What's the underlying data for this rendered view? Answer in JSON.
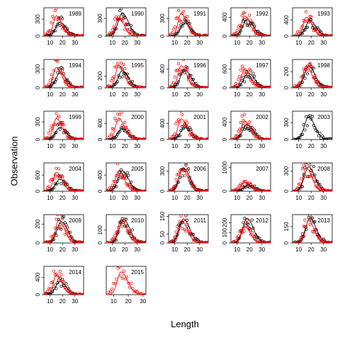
{
  "chart_data": {
    "type": "scatter",
    "title": "",
    "xlabel": "Length",
    "ylabel": "Observation",
    "series": [
      {
        "color": "#000000",
        "kind": "points + fitted line"
      },
      {
        "color": "#ff0000",
        "kind": "points + fitted line"
      }
    ],
    "panels": [
      {
        "year": "1989",
        "xlim": [
          5,
          37
        ],
        "ylim": [
          0,
          500
        ],
        "yticks": [
          "0",
          "300"
        ],
        "xticks": [
          "10",
          "20",
          "30"
        ],
        "black_peak": 270,
        "red_peak": 420,
        "black_mode": 18,
        "red_mode": 15,
        "red_points": true
      },
      {
        "year": "1990",
        "xlim": [
          5,
          37
        ],
        "ylim": [
          0,
          480
        ],
        "yticks": [
          "0",
          "300"
        ],
        "xticks": [
          "10",
          "20",
          "30"
        ],
        "black_peak": 430,
        "red_peak": 360,
        "black_mode": 18,
        "red_mode": 15,
        "red_points": true
      },
      {
        "year": "1991",
        "xlim": [
          5,
          37
        ],
        "ylim": [
          0,
          480
        ],
        "yticks": [
          "0",
          "300"
        ],
        "xticks": [
          "10",
          "20",
          "30"
        ],
        "black_peak": 240,
        "red_peak": 450,
        "black_mode": 18,
        "red_mode": 15,
        "red_points": true
      },
      {
        "year": "1992",
        "xlim": [
          5,
          37
        ],
        "ylim": [
          0,
          600
        ],
        "yticks": [
          "0",
          "400"
        ],
        "xticks": [
          "10",
          "20",
          "30"
        ],
        "black_peak": 380,
        "red_peak": 500,
        "black_mode": 18,
        "red_mode": 16,
        "red_points": true
      },
      {
        "year": "1993",
        "xlim": [
          5,
          37
        ],
        "ylim": [
          0,
          700
        ],
        "yticks": [
          "0",
          "400"
        ],
        "xticks": [
          "10",
          "20",
          "30"
        ],
        "black_peak": 420,
        "red_peak": 550,
        "black_mode": 19,
        "red_mode": 16,
        "red_points": true
      },
      {
        "year": "1994",
        "xlim": [
          5,
          37
        ],
        "ylim": [
          0,
          450
        ],
        "yticks": [
          "0",
          "300"
        ],
        "xticks": [
          "10",
          "20",
          "30"
        ],
        "black_peak": 260,
        "red_peak": 380,
        "black_mode": 18,
        "red_mode": 15,
        "red_points": true
      },
      {
        "year": "1995",
        "xlim": [
          5,
          37
        ],
        "ylim": [
          0,
          480
        ],
        "yticks": [
          "0",
          "200"
        ],
        "xticks": [
          "10",
          "20",
          "30"
        ],
        "black_peak": 320,
        "red_peak": 450,
        "black_mode": 18,
        "red_mode": 15,
        "red_points": true
      },
      {
        "year": "1996",
        "xlim": [
          5,
          37
        ],
        "ylim": [
          0,
          600
        ],
        "yticks": [
          "0",
          "400"
        ],
        "xticks": [
          "10",
          "20",
          "30"
        ],
        "black_peak": 420,
        "red_peak": 550,
        "black_mode": 18,
        "red_mode": 15,
        "red_points": true
      },
      {
        "year": "1997",
        "xlim": [
          5,
          37
        ],
        "ylim": [
          0,
          900
        ],
        "yticks": [
          "0",
          "600"
        ],
        "xticks": [
          "10",
          "20",
          "30"
        ],
        "black_peak": 520,
        "red_peak": 700,
        "black_mode": 19,
        "red_mode": 16,
        "red_points": true
      },
      {
        "year": "1998",
        "xlim": [
          5,
          37
        ],
        "ylim": [
          0,
          350
        ],
        "yticks": [
          "0",
          "200"
        ],
        "xticks": [
          "10",
          "20",
          "30"
        ],
        "black_peak": 300,
        "red_peak": 320,
        "black_mode": 18,
        "red_mode": 16,
        "red_points": true
      },
      {
        "year": "1999",
        "xlim": [
          5,
          37
        ],
        "ylim": [
          0,
          480
        ],
        "yticks": [
          "0",
          "300"
        ],
        "xticks": [
          "10",
          "20",
          "30"
        ],
        "black_peak": 230,
        "red_peak": 420,
        "black_mode": 18,
        "red_mode": 15,
        "red_points": true
      },
      {
        "year": "2000",
        "xlim": [
          5,
          37
        ],
        "ylim": [
          0,
          700
        ],
        "yticks": [
          "0",
          "400"
        ],
        "xticks": [
          "10",
          "20",
          "30"
        ],
        "black_peak": 300,
        "red_peak": 620,
        "black_mode": 18,
        "red_mode": 15,
        "red_points": true
      },
      {
        "year": "2001",
        "xlim": [
          5,
          37
        ],
        "ylim": [
          0,
          700
        ],
        "yticks": [
          "0",
          "400"
        ],
        "xticks": [
          "10",
          "20",
          "30"
        ],
        "black_peak": 320,
        "red_peak": 600,
        "black_mode": 18,
        "red_mode": 15,
        "red_points": true
      },
      {
        "year": "2002",
        "xlim": [
          5,
          37
        ],
        "ylim": [
          0,
          650
        ],
        "yticks": [
          "0",
          "400"
        ],
        "xticks": [
          "10",
          "20",
          "30"
        ],
        "black_peak": 380,
        "red_peak": 500,
        "black_mode": 18,
        "red_mode": 16,
        "red_points": true
      },
      {
        "year": "2003",
        "xlim": [
          5,
          37
        ],
        "ylim": [
          0,
          500
        ],
        "yticks": [
          "0",
          "300"
        ],
        "xticks": [
          "10",
          "20",
          "30"
        ],
        "black_peak": 440,
        "red_peak": 0,
        "black_mode": 18,
        "red_mode": 16,
        "red_points": false
      },
      {
        "year": "2004",
        "xlim": [
          5,
          37
        ],
        "ylim": [
          0,
          1050
        ],
        "yticks": [
          "0",
          "600"
        ],
        "xticks": [
          "10",
          "20",
          "30"
        ],
        "black_peak": 500,
        "red_peak": 820,
        "black_mode": 18,
        "red_mode": 15,
        "red_points": true
      },
      {
        "year": "2005",
        "xlim": [
          5,
          37
        ],
        "ylim": [
          0,
          700
        ],
        "yticks": [
          "0",
          "400"
        ],
        "xticks": [
          "10",
          "20",
          "30"
        ],
        "black_peak": 560,
        "red_peak": 600,
        "black_mode": 18,
        "red_mode": 15,
        "red_points": true
      },
      {
        "year": "2006",
        "xlim": [
          5,
          37
        ],
        "ylim": [
          0,
          420
        ],
        "yticks": [
          "0",
          "300"
        ],
        "xticks": [
          "10",
          "20",
          "30"
        ],
        "black_peak": 380,
        "red_peak": 400,
        "black_mode": 17,
        "red_mode": 16,
        "red_points": true
      },
      {
        "year": "2007",
        "xlim": [
          5,
          37
        ],
        "ylim": [
          0,
          1200
        ],
        "yticks": [
          "0",
          "1000"
        ],
        "xticks": [
          "10",
          "20",
          "30"
        ],
        "black_peak": 300,
        "red_peak": 450,
        "black_mode": 19,
        "red_mode": 16,
        "red_points": true
      },
      {
        "year": "2008",
        "xlim": [
          5,
          37
        ],
        "ylim": [
          0,
          420
        ],
        "yticks": [
          "0",
          "300"
        ],
        "xticks": [
          "10",
          "20",
          "30"
        ],
        "black_peak": 400,
        "red_peak": 410,
        "black_mode": 18,
        "red_mode": 16,
        "red_points": true
      },
      {
        "year": "2009",
        "xlim": [
          5,
          37
        ],
        "ylim": [
          0,
          300
        ],
        "yticks": [
          "0",
          "200"
        ],
        "xticks": [
          "10",
          "20",
          "30"
        ],
        "black_peak": 250,
        "red_peak": 290,
        "black_mode": 19,
        "red_mode": 17,
        "red_points": true
      },
      {
        "year": "2010",
        "xlim": [
          5,
          37
        ],
        "ylim": [
          0,
          220
        ],
        "yticks": [
          "0",
          "100"
        ],
        "xticks": [
          "10",
          "20",
          "30"
        ],
        "black_peak": 200,
        "red_peak": 215,
        "black_mode": 19,
        "red_mode": 17,
        "red_points": true
      },
      {
        "year": "2011",
        "xlim": [
          5,
          37
        ],
        "ylim": [
          0,
          160
        ],
        "yticks": [
          "0",
          "50",
          "150"
        ],
        "xticks": [
          "10",
          "20",
          "30"
        ],
        "black_peak": 150,
        "red_peak": 140,
        "black_mode": 17,
        "red_mode": 16,
        "red_points": true
      },
      {
        "year": "2012",
        "xlim": [
          5,
          37
        ],
        "ylim": [
          0,
          280
        ],
        "yticks": [
          "0",
          "100",
          "200"
        ],
        "xticks": [
          "10",
          "20",
          "30"
        ],
        "black_peak": 270,
        "red_peak": 190,
        "black_mode": 18,
        "red_mode": 16,
        "red_points": true
      },
      {
        "year": "2013",
        "xlim": [
          5,
          37
        ],
        "ylim": [
          0,
          260
        ],
        "yticks": [
          "0",
          "150"
        ],
        "xticks": [
          "10",
          "20",
          "30"
        ],
        "black_peak": 250,
        "red_peak": 240,
        "black_mode": 19,
        "red_mode": 18,
        "red_points": true
      },
      {
        "year": "2014",
        "xlim": [
          5,
          37
        ],
        "ylim": [
          0,
          650
        ],
        "yticks": [
          "0",
          "400"
        ],
        "xticks": [
          "10",
          "20",
          "30"
        ],
        "black_peak": 330,
        "red_peak": 520,
        "black_mode": 18,
        "red_mode": 15,
        "red_points": true
      },
      {
        "year": "2015",
        "xlim": [
          5,
          32
        ],
        "ylim": [
          0,
          380
        ],
        "yticks": [],
        "xticks": [
          "10",
          "20",
          "30"
        ],
        "black_peak": 0,
        "red_peak": 360,
        "black_mode": 18,
        "red_mode": 15,
        "red_points": true
      }
    ]
  }
}
